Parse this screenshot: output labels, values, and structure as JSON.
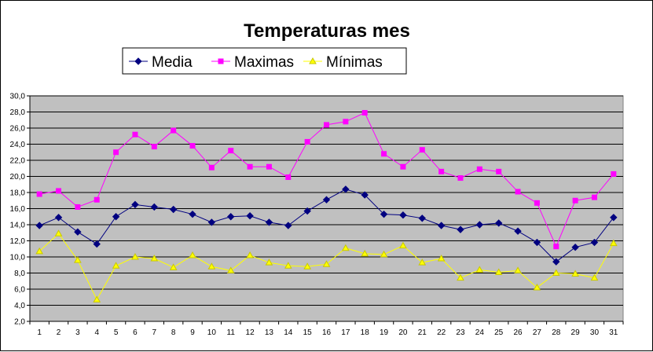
{
  "chart_data": {
    "type": "line",
    "title": "Temperaturas mes",
    "xlabel": "",
    "ylabel": "",
    "categories": [
      "1",
      "2",
      "3",
      "4",
      "5",
      "6",
      "7",
      "8",
      "9",
      "10",
      "11",
      "12",
      "13",
      "14",
      "15",
      "16",
      "17",
      "18",
      "19",
      "20",
      "21",
      "22",
      "23",
      "24",
      "25",
      "26",
      "27",
      "28",
      "29",
      "30",
      "31"
    ],
    "ylim": [
      2.0,
      30.0
    ],
    "ytick_step": 2.0,
    "ytick_labels": [
      "2,0",
      "4,0",
      "6,0",
      "8,0",
      "10,0",
      "12,0",
      "14,0",
      "16,0",
      "18,0",
      "20,0",
      "22,0",
      "24,0",
      "26,0",
      "28,0",
      "30,0"
    ],
    "grid": true,
    "plot_background": "#c0c0c0",
    "legend_position": "top",
    "series": [
      {
        "name": "Media",
        "color": "#000080",
        "marker": "diamond",
        "values": [
          13.9,
          14.9,
          13.1,
          11.6,
          15.0,
          16.5,
          16.2,
          15.9,
          15.3,
          14.3,
          15.0,
          15.1,
          14.3,
          13.9,
          15.7,
          17.1,
          18.4,
          17.7,
          15.3,
          15.2,
          14.8,
          13.9,
          13.4,
          14.0,
          14.2,
          13.2,
          11.8,
          9.4,
          11.2,
          11.8,
          14.9
        ]
      },
      {
        "name": "Maximas",
        "color": "#ff00ff",
        "marker": "square",
        "values": [
          17.8,
          18.2,
          16.2,
          17.1,
          23.0,
          25.2,
          23.7,
          25.7,
          23.8,
          21.1,
          23.2,
          21.2,
          21.2,
          19.9,
          24.3,
          26.4,
          26.8,
          27.9,
          22.8,
          21.2,
          23.3,
          20.6,
          19.8,
          20.9,
          20.6,
          18.1,
          16.7,
          11.3,
          17.0,
          17.4,
          20.3
        ]
      },
      {
        "name": "Mínimas",
        "color": "#ffff00",
        "marker": "triangle",
        "values": [
          10.7,
          12.9,
          9.6,
          4.7,
          8.9,
          10.0,
          9.8,
          8.7,
          10.2,
          8.8,
          8.3,
          10.2,
          9.3,
          8.9,
          8.8,
          9.1,
          11.1,
          10.4,
          10.3,
          11.4,
          9.3,
          9.8,
          7.4,
          8.4,
          8.1,
          8.3,
          6.2,
          8.0,
          7.9,
          7.4,
          11.7
        ]
      }
    ]
  }
}
